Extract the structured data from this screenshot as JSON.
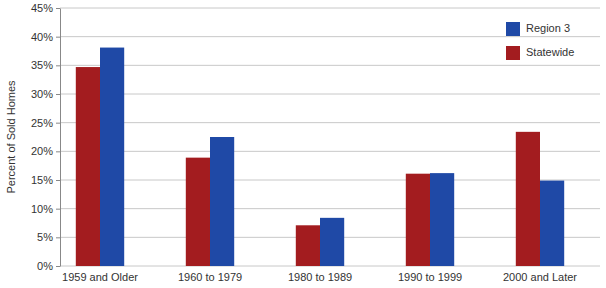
{
  "chart_data": {
    "type": "bar",
    "y_label": "Percent of Sold Homes",
    "categories": [
      "1959 and Older",
      "1960 to 1979",
      "1980 to 1989",
      "1990 to 1999",
      "2000 and Later"
    ],
    "series": [
      {
        "name": "Statewide",
        "color": "#a31c1f",
        "values": [
          34.7,
          18.9,
          7.1,
          16.1,
          23.4
        ]
      },
      {
        "name": "Region 3",
        "color": "#1f49a6",
        "values": [
          38.1,
          22.5,
          8.4,
          16.2,
          14.9
        ]
      }
    ],
    "ylim": [
      0,
      45
    ],
    "yticks": [
      {
        "value": 0,
        "label": "0%"
      },
      {
        "value": 5,
        "label": "5%"
      },
      {
        "value": 10,
        "label": "10%"
      },
      {
        "value": 15,
        "label": "15%"
      },
      {
        "value": 20,
        "label": "20%"
      },
      {
        "value": 25,
        "label": "25%"
      },
      {
        "value": 30,
        "label": "30%"
      },
      {
        "value": 35,
        "label": "35%"
      },
      {
        "value": 40,
        "label": "40%"
      },
      {
        "value": 45,
        "label": "45%"
      }
    ],
    "grid": true,
    "legend": "top-right"
  }
}
